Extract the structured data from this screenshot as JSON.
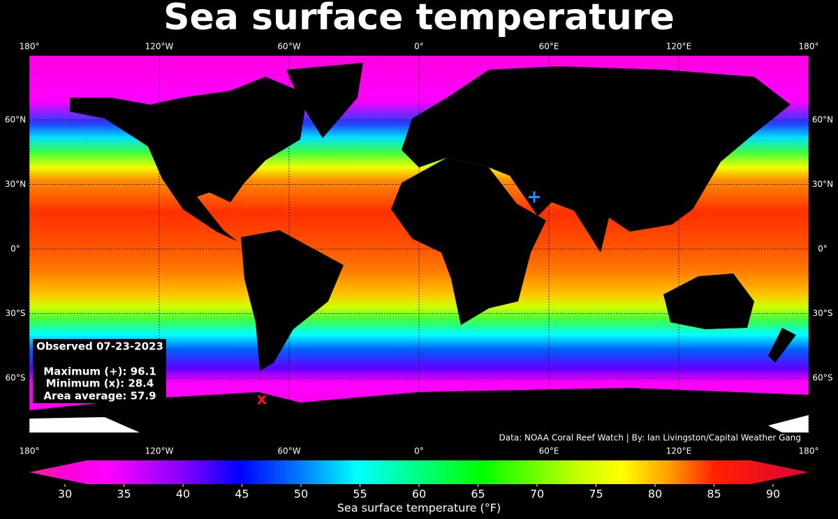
{
  "title": "Sea surface temperature",
  "map": {
    "lon_ticks": [
      {
        "value": -180,
        "label": "180°"
      },
      {
        "value": -120,
        "label": "120°W"
      },
      {
        "value": -60,
        "label": "60°W"
      },
      {
        "value": 0,
        "label": "0°"
      },
      {
        "value": 60,
        "label": "60°E"
      },
      {
        "value": 120,
        "label": "120°E"
      },
      {
        "value": 180,
        "label": "180°"
      }
    ],
    "lat_ticks": [
      {
        "value": 60,
        "label": "60°N"
      },
      {
        "value": 30,
        "label": "30°N"
      },
      {
        "value": 0,
        "label": "0°"
      },
      {
        "value": -30,
        "label": "30°S"
      },
      {
        "value": -60,
        "label": "60°S"
      }
    ]
  },
  "info": {
    "observed": "Observed 07-23-2023",
    "maximum": "Maximum (+): 96.1",
    "minimum": "Minimum (x): 28.4",
    "average": "Area average: 57.9"
  },
  "credit": "Data: NOAA Coral Reef Watch | By: Ian Livingston/Capital Weather Gang",
  "colorbar": {
    "ticks": [
      30,
      35,
      40,
      45,
      50,
      55,
      60,
      65,
      70,
      75,
      80,
      85,
      90
    ],
    "label": "Sea surface temperature (°F)"
  }
}
